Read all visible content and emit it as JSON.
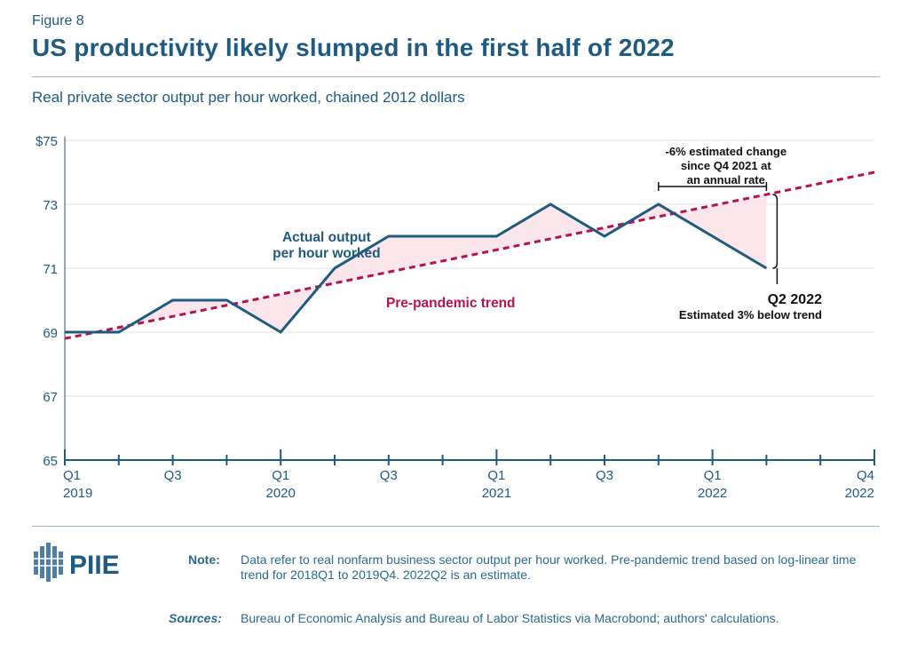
{
  "header": {
    "figure_label": "Figure 8",
    "title": "US productivity likely slumped in the first half of 2022",
    "subtitle": "Real private sector output per hour worked, chained 2012 dollars"
  },
  "chart_data": {
    "type": "line",
    "title": "US productivity likely slumped in the first half of 2022",
    "ylabel": "Real private sector output per hour worked, chained 2012 dollars",
    "ylim": [
      65,
      75
    ],
    "yticks": [
      65,
      67,
      69,
      71,
      73,
      75
    ],
    "ytick_labels": [
      "65",
      "67",
      "69",
      "71",
      "73",
      "$75"
    ],
    "xlim": [
      0,
      15
    ],
    "x_ticks": [
      {
        "x": 0,
        "line1": "Q1",
        "line2": "2019"
      },
      {
        "x": 2,
        "line1": "Q3",
        "line2": ""
      },
      {
        "x": 4,
        "line1": "Q1",
        "line2": "2020"
      },
      {
        "x": 6,
        "line1": "Q3",
        "line2": ""
      },
      {
        "x": 8,
        "line1": "Q1",
        "line2": "2021"
      },
      {
        "x": 10,
        "line1": "Q3",
        "line2": ""
      },
      {
        "x": 12,
        "line1": "Q1",
        "line2": "2022"
      },
      {
        "x": 15,
        "line1": "Q4",
        "line2": "2022"
      }
    ],
    "series": [
      {
        "name": "Actual output per hour worked",
        "color": "#1f5a80",
        "x": [
          0,
          1,
          2,
          3,
          4,
          5,
          6,
          7,
          8,
          9,
          10,
          11,
          12,
          13
        ],
        "values": [
          69,
          69,
          70,
          70,
          69,
          71,
          72,
          72,
          72,
          73,
          72,
          73,
          72,
          71
        ]
      },
      {
        "name": "Pre-pandemic trend",
        "color": "#b5124f",
        "style": "dashed",
        "x": [
          0,
          15
        ],
        "values": [
          68.8,
          74
        ]
      }
    ],
    "annotations": {
      "actual_label": [
        "Actual output",
        "per hour worked"
      ],
      "trend_label": "Pre-pandemic trend",
      "change_label": [
        "-6% estimated change",
        "since Q4 2021 at",
        "an annual rate"
      ],
      "q2_label": "Q2 2022",
      "below_label": "Estimated 3% below trend"
    },
    "fill_color": "#fbe6ec",
    "grid": true
  },
  "footer": {
    "logo_text": "PIIE",
    "note_label": "Note:",
    "note_text": "Data refer to real nonfarm business sector output per hour worked. Pre-pandemic trend based on log-linear time trend for 2018Q1 to 2019Q4. 2022Q2 is an estimate.",
    "sources_label": "Sources:",
    "sources_text": "Bureau of Economic Analysis and Bureau of Labor Statistics via Macrobond; authors' calculations."
  }
}
